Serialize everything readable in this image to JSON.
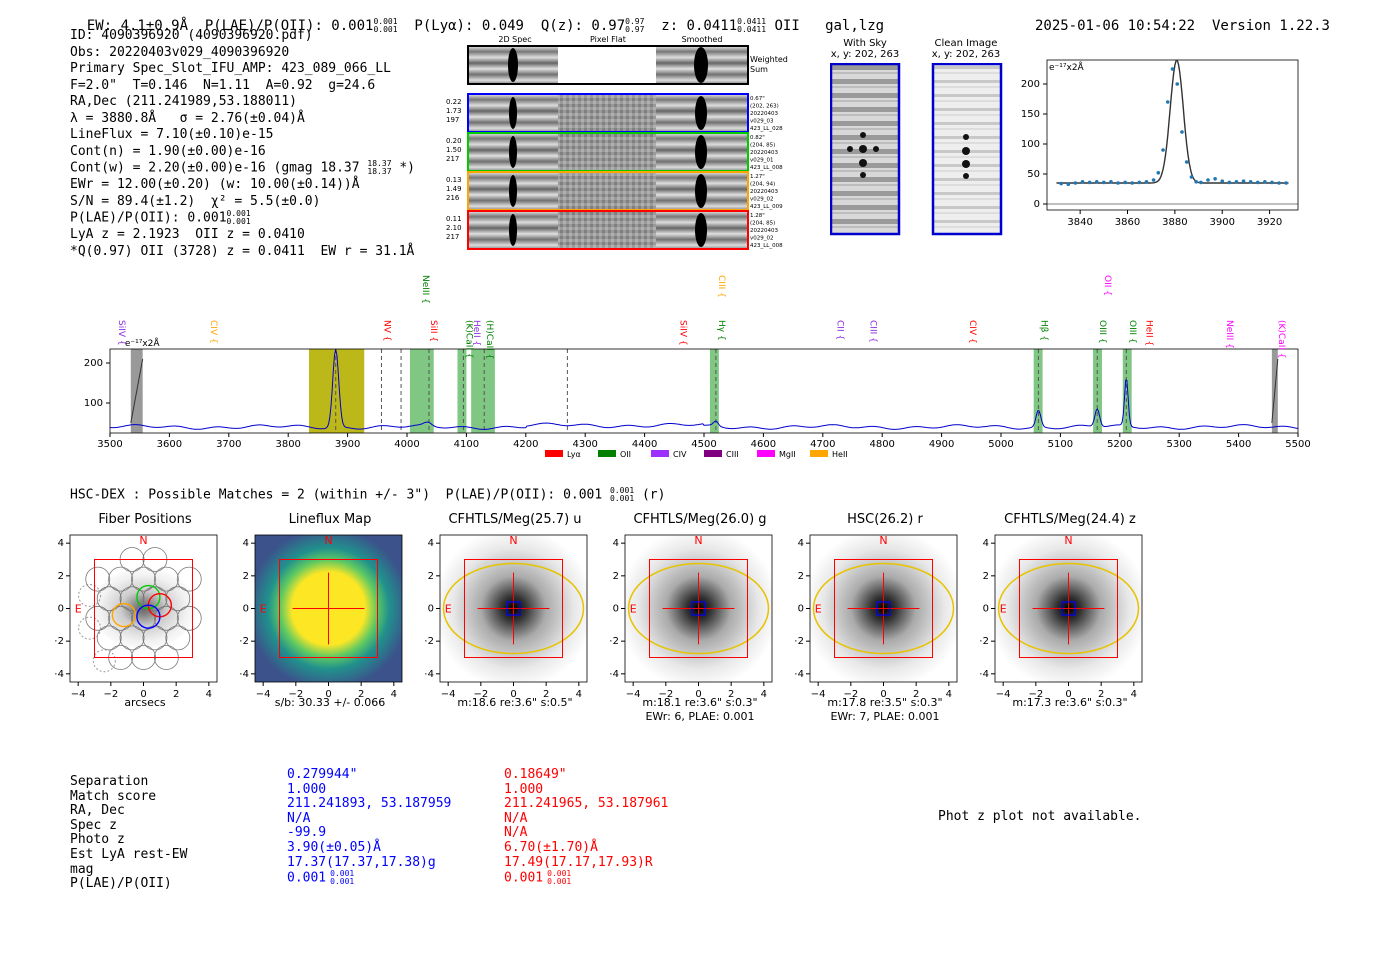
{
  "header": {
    "ew": "EW: 4.1±0.9Å",
    "plae": "P(LAE)/P(OII): 0.001",
    "plae_sup": "0.001",
    "plae_sub": "0.001",
    "plya": "P(Lyα): 0.049",
    "qz": "Q(z): 0.97",
    "qz_sup": "0.97",
    "qz_sub": "0.97",
    "z": "z: 0.0411",
    "z_sup": "0.0411",
    "z_sub": "0.0411",
    "z_line": "OII",
    "flags": "gal,lzg",
    "timestamp": "2025-01-06 10:54:22",
    "version": "Version 1.22.3"
  },
  "info": {
    "id": "ID: 4090396920 (4090396920.pdf)",
    "obs": "Obs: 20220403v029_4090396920",
    "slot": "Primary Spec_Slot_IFU_AMP: 423_089_066_LL",
    "fiber": "F=2.0\"  T=0.146  N=1.11  A=0.92  g=24.6",
    "radec": "RA,Dec (211.241989,53.188011)",
    "lambda": "λ = 3880.8Å   σ = 2.76(±0.04)Å",
    "lineflux": "LineFlux = 7.10(±0.10)e-15",
    "contn": "Cont(n) = 1.90(±0.00)e-16",
    "contw": "Cont(w) = 2.20(±0.00)e-16 (gmag 18.37",
    "contw_sup": "18.37",
    "contw_sub": "18.37",
    "contw_end": "*)",
    "ewr": "EWr = 12.00(±0.20) (w: 10.00(±0.14))Å",
    "sn": "S/N = 89.4(±1.2)  χ² = 5.5(±0.0)",
    "plae": "P(LAE)/P(OII): 0.001",
    "plae_sup": "0.001",
    "plae_sub": "0.001",
    "lya": "LyA z = 2.1923  OII z = 0.0410",
    "q": "*Q(0.97) OII (3728) z = 0.0411  EW r = 31.1Å"
  },
  "cutouts": {
    "col_2d": "2D Spec",
    "col_flat": "Pixel Flat",
    "col_smooth": "Smoothed",
    "weighted": "Weighted Sum",
    "rows": [
      {
        "n1": "0.22",
        "n2": "1.73",
        "n3": "197",
        "t1": "0.67\"",
        "t2": "(202, 263)",
        "t3": "20220403",
        "t4": "v029_03",
        "t5": "423_LL_028",
        "color": "#0000ff"
      },
      {
        "n1": "0.20",
        "n2": "1.50",
        "n3": "217",
        "t1": "0.82\"",
        "t2": "(204, 85)",
        "t3": "20220403",
        "t4": "v029_01",
        "t5": "423_LL_008",
        "color": "#00cc00"
      },
      {
        "n1": "0.13",
        "n2": "1.49",
        "n3": "216",
        "t1": "1.27\"",
        "t2": "(204, 94)",
        "t3": "20220403",
        "t4": "v029_02",
        "t5": "423_LL_009",
        "color": "#ffa500"
      },
      {
        "n1": "0.11",
        "n2": "2.10",
        "n3": "217",
        "t1": "1.28\"",
        "t2": "(204, 85)",
        "t3": "20220403",
        "t4": "v029_02",
        "t5": "423_LL_008",
        "color": "#ff0000"
      }
    ]
  },
  "sky": {
    "with_sky": "With Sky",
    "with_sky_xy": "x, y: 202, 263",
    "clean": "Clean Image",
    "clean_xy": "x, y: 202, 263"
  },
  "chart_data": [
    {
      "type": "line",
      "name": "line-fit",
      "ylabel": "e⁻¹⁷x2Å",
      "xlim": [
        3826,
        3932
      ],
      "ylim": [
        -10,
        240
      ],
      "xticks": [
        3840,
        3860,
        3880,
        3900,
        3920
      ],
      "yticks": [
        0,
        50,
        100,
        150,
        200
      ],
      "points_x": [
        3832,
        3835,
        3838,
        3841,
        3844,
        3847,
        3850,
        3853,
        3856,
        3859,
        3862,
        3865,
        3868,
        3871,
        3873,
        3875,
        3877,
        3879,
        3881,
        3883,
        3885,
        3887,
        3889,
        3891,
        3894,
        3897,
        3900,
        3903,
        3906,
        3909,
        3912,
        3915,
        3918,
        3921,
        3924,
        3927
      ],
      "points_y": [
        34,
        33,
        35,
        37,
        36,
        37,
        36,
        37,
        35,
        36,
        35,
        36,
        37,
        40,
        52,
        90,
        170,
        225,
        200,
        120,
        70,
        45,
        37,
        36,
        40,
        42,
        38,
        36,
        37,
        38,
        37,
        36,
        37,
        36,
        35,
        35
      ],
      "fit_center": 3880.8,
      "fit_sigma": 2.76,
      "fit_peak": 240,
      "fit_base": 35
    },
    {
      "type": "line",
      "name": "full-spectrum",
      "ylabel": "e⁻¹⁷x2Å",
      "xlim": [
        3500,
        5500
      ],
      "ylim": [
        25,
        235
      ],
      "xticks": [
        3500,
        3600,
        3700,
        3800,
        3900,
        4000,
        4100,
        4200,
        4300,
        4400,
        4500,
        4600,
        4700,
        4800,
        4900,
        5000,
        5100,
        5200,
        5300,
        5400,
        5500
      ],
      "yticks": [
        100,
        200
      ],
      "emission": [
        {
          "center": 3880,
          "sigma": 5,
          "amp": 195
        },
        {
          "center": 4035,
          "sigma": 6,
          "amp": 8
        },
        {
          "center": 4520,
          "sigma": 4,
          "amp": 12
        },
        {
          "center": 5063,
          "sigma": 4,
          "amp": 42
        },
        {
          "center": 5162,
          "sigma": 4,
          "amp": 45
        },
        {
          "center": 5211,
          "sigma": 3,
          "amp": 120
        }
      ],
      "base": 40,
      "lines": [
        {
          "label": "SiIV",
          "wave": 3510,
          "color": "#8a2be2",
          "row": 1
        },
        {
          "label": "CIV",
          "wave": 3665,
          "color": "#ffa500",
          "row": 1
        },
        {
          "label": "NV",
          "wave": 3957,
          "color": "#ff0000",
          "row": 1
        },
        {
          "label": "SiII",
          "wave": 4035,
          "color": "#ff0000",
          "row": 1
        },
        {
          "label": "NeIII",
          "wave": 4022,
          "color": "#008000",
          "row": 0
        },
        {
          "label": "(K)CaII",
          "wave": 4095,
          "color": "#008000",
          "row": 1
        },
        {
          "label": "HeII",
          "wave": 4108,
          "color": "#8a2be2",
          "row": 1
        },
        {
          "label": "(H)CaII",
          "wave": 4130,
          "color": "#008000",
          "row": 1
        },
        {
          "label": "SiIV",
          "wave": 4455,
          "color": "#ff0000",
          "row": 1
        },
        {
          "label": "CIII",
          "wave": 4520,
          "color": "#ffa500",
          "row": 0
        },
        {
          "label": "Hγ",
          "wave": 4520,
          "color": "#008000",
          "row": 1
        },
        {
          "label": "CII",
          "wave": 4720,
          "color": "#8a2be2",
          "row": 1
        },
        {
          "label": "CIII",
          "wave": 4775,
          "color": "#8a2be2",
          "row": 1
        },
        {
          "label": "CIV",
          "wave": 4943,
          "color": "#ff0000",
          "row": 1
        },
        {
          "label": "Hβ",
          "wave": 5063,
          "color": "#008000",
          "row": 1
        },
        {
          "label": "OII",
          "wave": 5170,
          "color": "#ff00ff",
          "row": 0
        },
        {
          "label": "OIII",
          "wave": 5162,
          "color": "#008000",
          "row": 1
        },
        {
          "label": "OIII",
          "wave": 5212,
          "color": "#008000",
          "row": 1
        },
        {
          "label": "HeII",
          "wave": 5240,
          "color": "#ff0000",
          "row": 1
        },
        {
          "label": "NeIII",
          "wave": 5375,
          "color": "#ff00ff",
          "row": 1
        },
        {
          "label": "(K)CaII",
          "wave": 5463,
          "color": "#ff00ff",
          "row": 1
        }
      ],
      "legend": [
        {
          "label": "Lyα",
          "color": "#ff0000"
        },
        {
          "label": "OII",
          "color": "#008000"
        },
        {
          "label": "CIV",
          "color": "#9b30ff"
        },
        {
          "label": "CIII",
          "color": "#800080"
        },
        {
          "label": "MgII",
          "color": "#ff00ff"
        },
        {
          "label": "HeII",
          "color": "#ffa500"
        }
      ]
    }
  ],
  "matches": {
    "title": "HSC-DEX : Possible Matches = 2 (within +/- 3\")  P(LAE)/P(OII): 0.001",
    "title_sup": "0.001",
    "title_sub": "0.001",
    "title_end": "(r)"
  },
  "imgpanels": [
    {
      "title": "Fiber Positions",
      "cap1": "arcsecs",
      "cap2": "",
      "kind": "fiber"
    },
    {
      "title": "Lineflux Map",
      "cap1": "s/b: 30.33 +/- 0.066",
      "cap2": "",
      "kind": "lineflux"
    },
    {
      "title": "CFHTLS/Meg(25.7) u",
      "cap1": "m:18.6  re:3.6\"  s:0.5\"",
      "cap2": "",
      "kind": "galaxy"
    },
    {
      "title": "CFHTLS/Meg(26.0) g",
      "cap1": "m:18.1  re:3.6\"  s:0.3\"",
      "cap2": "EWr: 6, PLAE: 0.001",
      "kind": "galaxy"
    },
    {
      "title": "HSC(26.2) r",
      "cap1": "m:17.8  re:3.5\"  s:0.3\"",
      "cap2": "EWr: 7, PLAE: 0.001",
      "kind": "galaxy"
    },
    {
      "title": "CFHTLS/Meg(24.4) z",
      "cap1": "m:17.3  re:3.6\"  s:0.3\"",
      "cap2": "",
      "kind": "galaxy"
    }
  ],
  "axis_labels": {
    "N": "N",
    "E": "E",
    "ticks": [
      "−4",
      "−2",
      "0",
      "2",
      "4"
    ]
  },
  "table": {
    "labels": [
      "Separation",
      "Match score",
      "RA, Dec",
      "Spec z",
      "Photo z",
      "Est LyA rest-EW",
      "mag",
      "P(LAE)/P(OII)"
    ],
    "blue": [
      "0.279944\"",
      "1.000",
      "211.241893, 53.187959",
      "N/A",
      "-99.9",
      "3.90(±0.05)Å",
      "17.37(17.37,17.38)g",
      "0.001"
    ],
    "blue_sup": "0.001",
    "blue_sub": "0.001",
    "red": [
      "0.18649\"",
      "1.000",
      "211.241965, 53.187961",
      "N/A",
      "N/A",
      "6.70(±1.70)Å",
      "17.49(17.17,17.93)R",
      "0.001"
    ],
    "red_sup": "0.001",
    "red_sub": "0.001",
    "photz_msg": "Phot z plot not available."
  }
}
